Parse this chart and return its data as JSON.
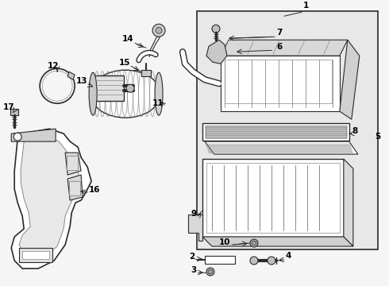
{
  "bg_color": "#f5f5f5",
  "box_bg": "#e8e8e8",
  "white": "#ffffff",
  "lc": "#2a2a2a",
  "gray": "#888888",
  "light_gray": "#cccccc",
  "figsize": [
    4.9,
    3.6
  ],
  "dpi": 100
}
